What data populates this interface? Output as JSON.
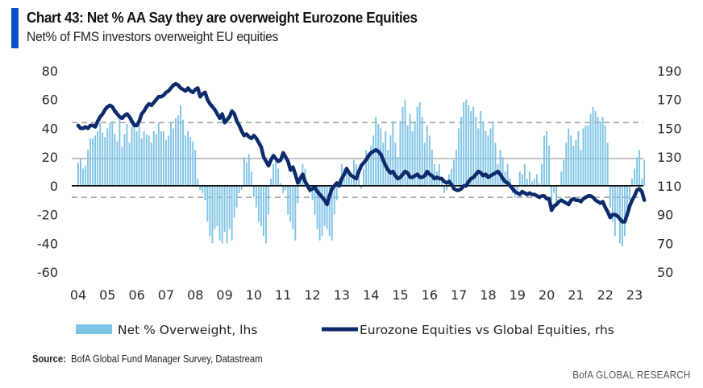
{
  "header": {
    "title": "Chart 43: Net % AA Say they are overweight Eurozone Equities",
    "subtitle": "Net% of FMS investors overweight EU equities",
    "accent_color": "#0a50c8"
  },
  "footer": {
    "source_label": "Source:",
    "source_text": "BofA Global Fund Manager Survey, Datastream",
    "brand": "BofA GLOBAL RESEARCH"
  },
  "chart_data": {
    "type": "bar",
    "title": "Chart 43: Net % AA Say they are overweight Eurozone Equities",
    "subtitle": "Net% of FMS investors overweight EU equities",
    "xlabel": "",
    "ylabel": "",
    "x_tick_labels": [
      "04",
      "05",
      "06",
      "07",
      "08",
      "09",
      "10",
      "11",
      "12",
      "13",
      "14",
      "15",
      "16",
      "17",
      "18",
      "19",
      "20",
      "21",
      "22",
      "23"
    ],
    "x_range": [
      2004.0,
      2023.42
    ],
    "y_left": {
      "ticks": [
        80,
        60,
        40,
        20,
        0,
        -20,
        -40,
        -60
      ],
      "ylim": [
        -60,
        80
      ]
    },
    "y_right": {
      "ticks": [
        190,
        170,
        150,
        130,
        110,
        90,
        70,
        50
      ],
      "ylim": [
        50,
        190
      ]
    },
    "grid": false,
    "reference_lines_lhs": [
      {
        "value": 0,
        "style": "solid",
        "color": "#000000"
      },
      {
        "value": 19,
        "style": "solid",
        "color": "#a6a6a6"
      },
      {
        "value": 44,
        "style": "dashed",
        "color": "#a6a6a6"
      },
      {
        "value": -8,
        "style": "dashed",
        "color": "#a6a6a6"
      }
    ],
    "legend_position": "bottom",
    "series": [
      {
        "name": "Net % Overweight, lhs",
        "type": "bar",
        "axis": "left",
        "color": "#7ec3e6",
        "start": 2004.0,
        "step_years": 0.0833333,
        "values": [
          16,
          19,
          12,
          14,
          25,
          33,
          33,
          35,
          38,
          44,
          37,
          34,
          40,
          44,
          45,
          36,
          31,
          49,
          27,
          36,
          43,
          30,
          41,
          43,
          38,
          45,
          33,
          38,
          36,
          35,
          30,
          38,
          36,
          44,
          38,
          38,
          32,
          35,
          44,
          40,
          47,
          49,
          56,
          46,
          35,
          38,
          34,
          31,
          25,
          5,
          -3,
          -5,
          -10,
          -25,
          -35,
          -40,
          -30,
          -28,
          -38,
          -40,
          -32,
          -40,
          -30,
          -38,
          -22,
          -15,
          -5,
          -3,
          20,
          16,
          22,
          10,
          -8,
          -15,
          -25,
          -28,
          -35,
          -40,
          -20,
          5,
          15,
          18,
          12,
          2,
          -5,
          -3,
          -20,
          -25,
          -30,
          -38,
          -12,
          8,
          15,
          12,
          -2,
          -5,
          -10,
          -20,
          -30,
          -38,
          -35,
          -28,
          -30,
          -35,
          -38,
          -20,
          -10,
          5,
          15,
          12,
          8,
          10,
          5,
          18,
          15,
          8,
          -2,
          12,
          25,
          20,
          28,
          35,
          48,
          43,
          40,
          30,
          38,
          25,
          35,
          45,
          30,
          20,
          45,
          55,
          60,
          42,
          50,
          38,
          45,
          55,
          58,
          48,
          30,
          42,
          35,
          25,
          15,
          10,
          15,
          5,
          -5,
          -3,
          8,
          12,
          18,
          25,
          40,
          48,
          58,
          60,
          56,
          52,
          55,
          48,
          40,
          52,
          45,
          38,
          35,
          40,
          45,
          30,
          15,
          25,
          20,
          10,
          15,
          5,
          -5,
          -8,
          -3,
          10,
          8,
          15,
          5,
          10,
          3,
          5,
          8,
          2,
          15,
          35,
          38,
          28,
          -10,
          -5,
          -15,
          0,
          10,
          18,
          30,
          40,
          35,
          28,
          32,
          38,
          25,
          40,
          42,
          42,
          50,
          55,
          52,
          48,
          45,
          48,
          42,
          30,
          -15,
          -25,
          -35,
          -20,
          -40,
          -42,
          -35,
          -20,
          -10,
          5,
          12,
          20,
          25,
          5,
          18
        ]
      },
      {
        "name": "Eurozone Equities vs Global Equities, rhs",
        "type": "line",
        "axis": "right",
        "color": "#0d2a6b",
        "start": 2004.0,
        "step_years": 0.0833333,
        "values": [
          152,
          150,
          150,
          151,
          150,
          152,
          152,
          151,
          155,
          158,
          160,
          163,
          165,
          166,
          165,
          162,
          160,
          158,
          157,
          159,
          160,
          158,
          155,
          152,
          152,
          155,
          160,
          162,
          165,
          167,
          166,
          168,
          170,
          172,
          172,
          173,
          175,
          176,
          178,
          180,
          181,
          180,
          178,
          177,
          176,
          178,
          176,
          175,
          177,
          178,
          172,
          174,
          175,
          170,
          167,
          165,
          163,
          160,
          157,
          160,
          154,
          156,
          158,
          162,
          160,
          155,
          152,
          148,
          145,
          146,
          144,
          143,
          145,
          143,
          140,
          137,
          130,
          127,
          124,
          128,
          131,
          129,
          127,
          128,
          133,
          130,
          127,
          121,
          123,
          118,
          112,
          115,
          118,
          113,
          110,
          107,
          108,
          109,
          106,
          104,
          102,
          100,
          97,
          103,
          108,
          110,
          112,
          110,
          115,
          118,
          122,
          119,
          117,
          116,
          115,
          120,
          124,
          126,
          128,
          131,
          133,
          134,
          135,
          134,
          132,
          128,
          124,
          121,
          119,
          120,
          117,
          115,
          116,
          118,
          120,
          119,
          116,
          116,
          117,
          118,
          116,
          116,
          117,
          120,
          118,
          117,
          115,
          116,
          115,
          115,
          113,
          112,
          113,
          111,
          108,
          107,
          107,
          108,
          110,
          110,
          113,
          115,
          116,
          118,
          120,
          119,
          117,
          118,
          116,
          117,
          118,
          119,
          120,
          118,
          115,
          113,
          112,
          110,
          108,
          106,
          105,
          104,
          106,
          105,
          104,
          105,
          104,
          104,
          103,
          102,
          103,
          103,
          101,
          101,
          93,
          96,
          97,
          99,
          100,
          99,
          98,
          97,
          100,
          101,
          100,
          100,
          99,
          101,
          102,
          103,
          103,
          102,
          100,
          99,
          98,
          99,
          95,
          92,
          88,
          90,
          90,
          89,
          87,
          85,
          85,
          90,
          96,
          100,
          103,
          107,
          108,
          106,
          100
        ]
      }
    ]
  }
}
